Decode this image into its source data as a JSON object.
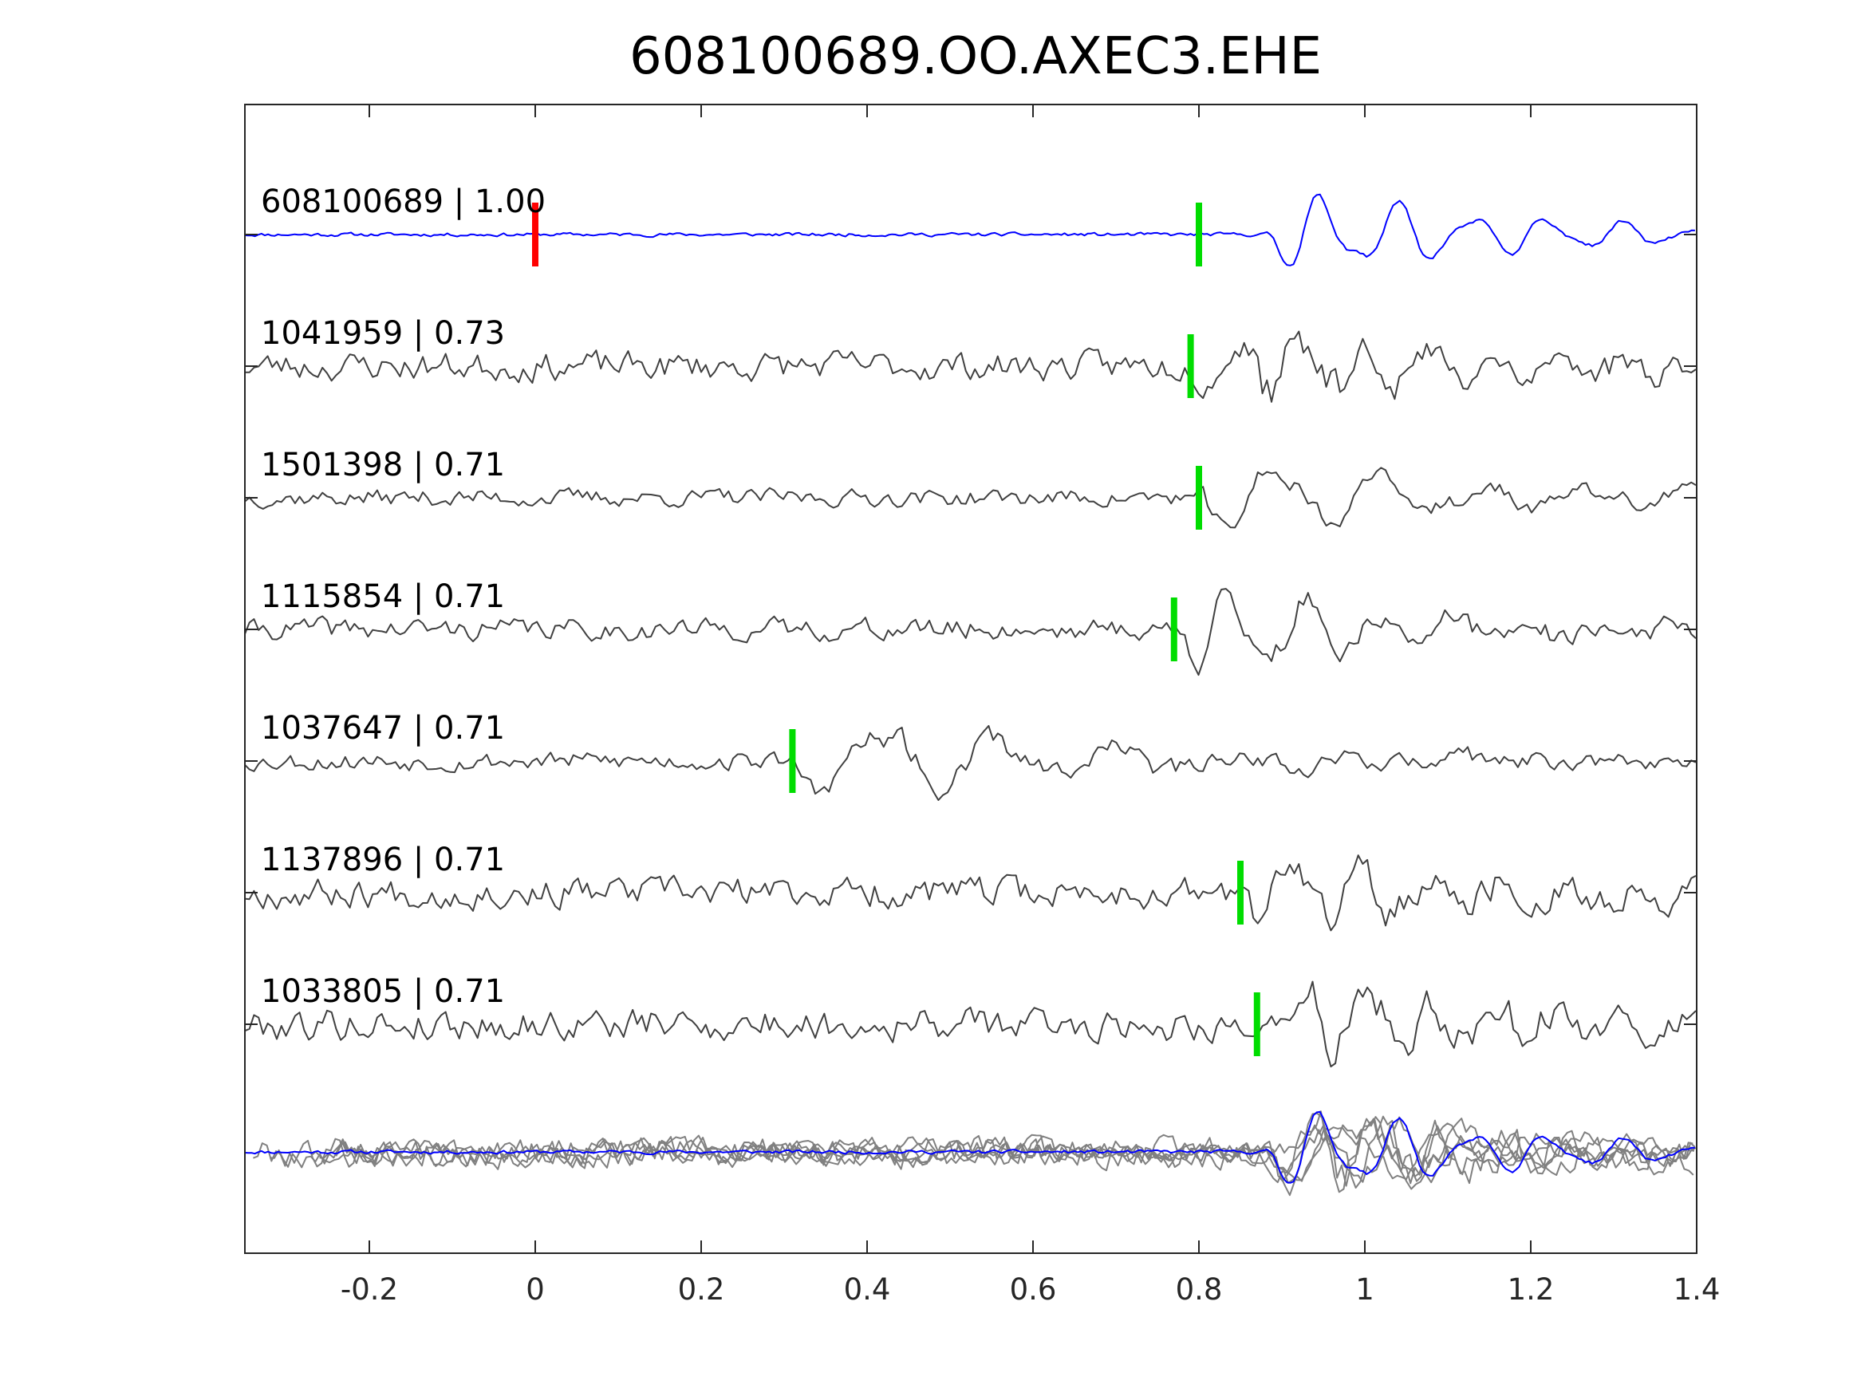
{
  "chart_data": {
    "type": "line",
    "title": "608100689.OO.AXEC3.EHE",
    "xlabel": "",
    "ylabel": "",
    "xlim": [
      -0.35,
      1.4
    ],
    "x_ticks": [
      -0.2,
      0,
      0.2,
      0.4,
      0.6,
      0.8,
      1,
      1.2,
      1.4
    ],
    "x_tick_labels": [
      "-0.2",
      "0",
      "0.2",
      "0.4",
      "0.6",
      "0.8",
      "1",
      "1.2",
      "1.4"
    ],
    "grid": false,
    "legend": "none",
    "colors": {
      "template": "#0000ff",
      "match": "#404040",
      "overlay": "#808080",
      "origin_marker": "#ff0000",
      "pick_marker": "#00dd00",
      "axes": "#262626"
    },
    "reference_time": 0,
    "traces": [
      {
        "label": "608100689 | 1.00",
        "id": "608100689",
        "cc": 1.0,
        "pick": 0.8,
        "onset": 0.88
      },
      {
        "label": "1041959 | 0.73",
        "id": "1041959",
        "cc": 0.73,
        "pick": 0.79,
        "onset": 0.79
      },
      {
        "label": "1501398 | 0.71",
        "id": "1501398",
        "cc": 0.71,
        "pick": 0.8,
        "onset": 0.8
      },
      {
        "label": "1115854 | 0.71",
        "id": "1115854",
        "cc": 0.71,
        "pick": 0.77,
        "onset": 0.77
      },
      {
        "label": "1037647 | 0.71",
        "id": "1037647",
        "cc": 0.71,
        "pick": 0.31,
        "onset": 0.31
      },
      {
        "label": "1137896 | 0.71",
        "id": "1137896",
        "cc": 0.71,
        "pick": 0.85,
        "onset": 0.85
      },
      {
        "label": "1033805 | 0.71",
        "id": "1033805",
        "cc": 0.71,
        "pick": 0.87,
        "onset": 0.87
      }
    ]
  }
}
